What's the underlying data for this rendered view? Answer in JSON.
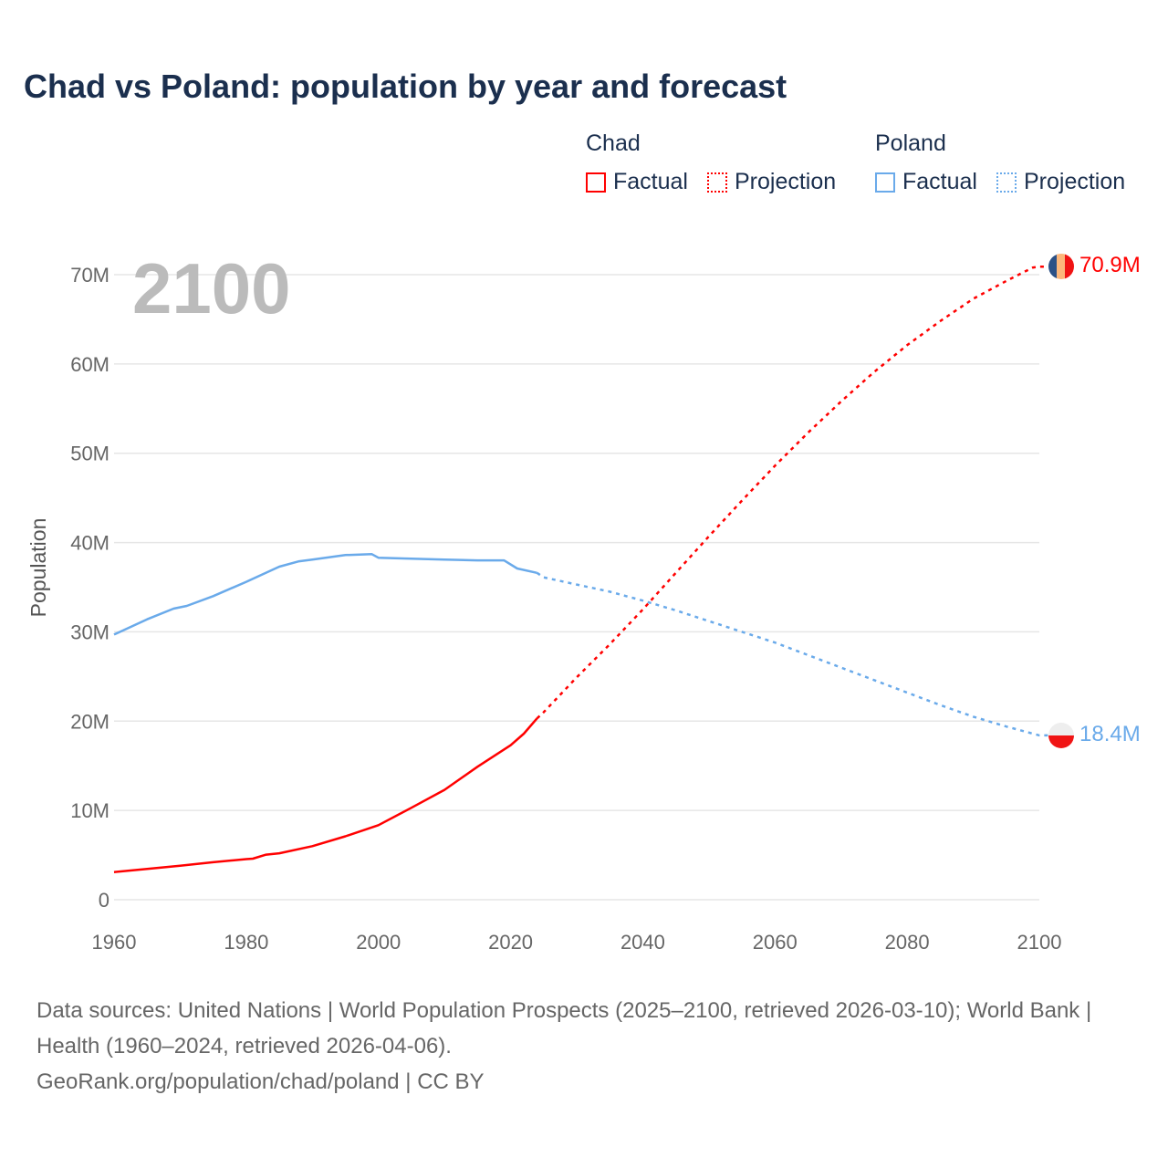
{
  "chart_data": {
    "type": "line",
    "title": "Chad vs Poland: population by year and forecast",
    "ylabel": "Population",
    "xlabel": "",
    "xlim": [
      1960,
      2100
    ],
    "ylim": [
      0,
      70000000
    ],
    "x_ticks": [
      "1960",
      "1980",
      "2000",
      "2020",
      "2040",
      "2060",
      "2080",
      "2100"
    ],
    "y_ticks": [
      {
        "value": 0,
        "label": "0"
      },
      {
        "value": 10,
        "label": "10M"
      },
      {
        "value": 20,
        "label": "20M"
      },
      {
        "value": 30,
        "label": "30M"
      },
      {
        "value": 40,
        "label": "40M"
      },
      {
        "value": 50,
        "label": "50M"
      },
      {
        "value": 60,
        "label": "60M"
      },
      {
        "value": 70,
        "label": "70M"
      }
    ],
    "y_unit": "millions",
    "grid": true,
    "current_year": "2100",
    "legend": {
      "placement": "top-right",
      "groups": [
        {
          "name": "Chad",
          "items": [
            "Factual",
            "Projection"
          ]
        },
        {
          "name": "Poland",
          "items": [
            "Factual",
            "Projection"
          ]
        }
      ]
    },
    "series": [
      {
        "name": "Chad",
        "color": "#ff0000",
        "end_label": "70.9M",
        "factual": [
          [
            1960,
            3.1
          ],
          [
            1965,
            3.45
          ],
          [
            1970,
            3.8
          ],
          [
            1975,
            4.2
          ],
          [
            1980,
            4.55
          ],
          [
            1981,
            4.6
          ],
          [
            1983,
            5.05
          ],
          [
            1985,
            5.2
          ],
          [
            1990,
            6.0
          ],
          [
            1995,
            7.1
          ],
          [
            2000,
            8.35
          ],
          [
            2005,
            10.3
          ],
          [
            2010,
            12.3
          ],
          [
            2015,
            14.9
          ],
          [
            2020,
            17.3
          ],
          [
            2022,
            18.6
          ],
          [
            2024,
            20.3
          ]
        ],
        "projection": [
          [
            2024,
            20.3
          ],
          [
            2025,
            21.0
          ],
          [
            2030,
            24.9
          ],
          [
            2035,
            28.6
          ],
          [
            2040,
            32.5
          ],
          [
            2045,
            36.6
          ],
          [
            2050,
            40.7
          ],
          [
            2055,
            44.7
          ],
          [
            2060,
            48.6
          ],
          [
            2065,
            52.3
          ],
          [
            2070,
            55.8
          ],
          [
            2075,
            59.1
          ],
          [
            2080,
            62.1
          ],
          [
            2085,
            64.8
          ],
          [
            2090,
            67.3
          ],
          [
            2095,
            69.3
          ],
          [
            2099,
            70.8
          ],
          [
            2100,
            70.9
          ]
        ]
      },
      {
        "name": "Poland",
        "color": "#6aaaea",
        "end_label": "18.4M",
        "factual": [
          [
            1960,
            29.7
          ],
          [
            1965,
            31.4
          ],
          [
            1969,
            32.6
          ],
          [
            1971,
            32.9
          ],
          [
            1975,
            34.0
          ],
          [
            1980,
            35.6
          ],
          [
            1985,
            37.3
          ],
          [
            1988,
            37.9
          ],
          [
            1990,
            38.1
          ],
          [
            1995,
            38.6
          ],
          [
            1999,
            38.7
          ],
          [
            2000,
            38.3
          ],
          [
            2005,
            38.2
          ],
          [
            2010,
            38.1
          ],
          [
            2015,
            38.0
          ],
          [
            2019,
            38.0
          ],
          [
            2021,
            37.1
          ],
          [
            2024,
            36.6
          ]
        ],
        "projection": [
          [
            2024,
            36.6
          ],
          [
            2025,
            36.1
          ],
          [
            2030,
            35.3
          ],
          [
            2035,
            34.5
          ],
          [
            2040,
            33.5
          ],
          [
            2045,
            32.4
          ],
          [
            2050,
            31.2
          ],
          [
            2055,
            30.0
          ],
          [
            2060,
            28.8
          ],
          [
            2065,
            27.4
          ],
          [
            2070,
            26.0
          ],
          [
            2075,
            24.6
          ],
          [
            2080,
            23.2
          ],
          [
            2085,
            21.8
          ],
          [
            2090,
            20.5
          ],
          [
            2095,
            19.4
          ],
          [
            2100,
            18.4
          ]
        ]
      }
    ]
  },
  "footer": {
    "sources": "Data sources: United Nations | World Population Prospects (2025–2100, retrieved 2026-03-10); World Bank | Health (1960–2024, retrieved 2026-04-06).",
    "credit": "GeoRank.org/population/chad/poland | CC BY"
  }
}
